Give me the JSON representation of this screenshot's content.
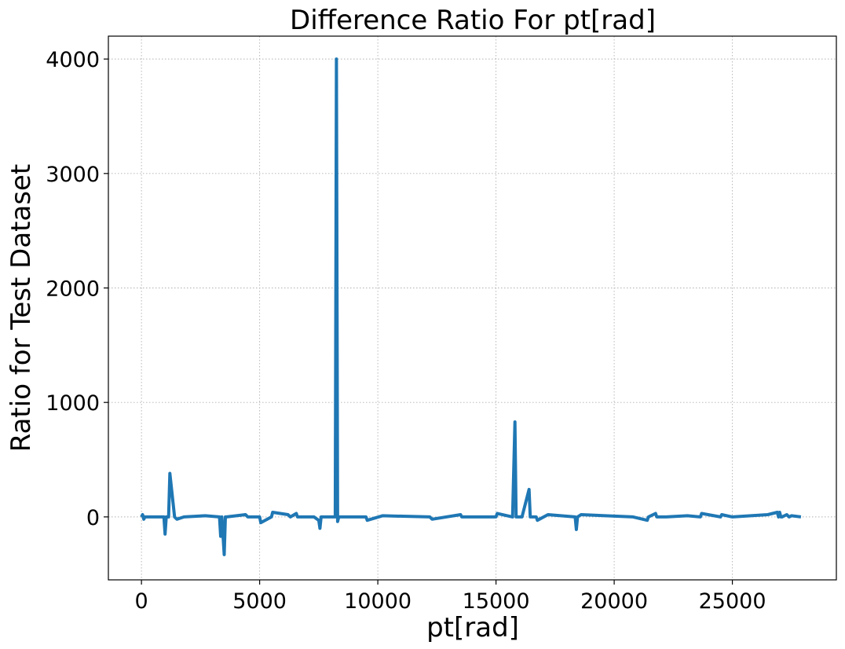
{
  "chart_data": {
    "type": "line",
    "title": "Difference Ratio For pt[rad]",
    "xlabel": "pt[rad]",
    "ylabel": "Ratio for Test Dataset",
    "xlim": [
      -1400,
      29400
    ],
    "ylim": [
      -550,
      4200
    ],
    "xticks": [
      0,
      5000,
      10000,
      15000,
      20000,
      25000
    ],
    "yticks": [
      0,
      1000,
      2000,
      3000,
      4000
    ],
    "grid": true,
    "grid_style": "dotted",
    "line_color": "#1f77b4",
    "series": [
      {
        "x": [
          0,
          50,
          100,
          150,
          950,
          1000,
          1050,
          1150,
          1200,
          1400,
          1500,
          1800,
          2700,
          3300,
          3350,
          3400,
          3500,
          3550,
          3600,
          4400,
          4500,
          5000,
          5050,
          5500,
          5550,
          6200,
          6300,
          6550,
          6600,
          7300,
          7500,
          7550,
          7600,
          7700,
          8200,
          8250,
          8300,
          8350,
          9500,
          9550,
          10200,
          12200,
          12300,
          13500,
          13550,
          15000,
          15050,
          15700,
          15800,
          15850,
          15900,
          16100,
          16150,
          16400,
          16450,
          16550,
          16700,
          16750,
          17200,
          18350,
          18400,
          18450,
          18600,
          20800,
          21400,
          21450,
          21750,
          21800,
          22200,
          23100,
          23650,
          23700,
          24500,
          24550,
          25000,
          26500,
          26900,
          26950,
          27000,
          27050,
          27100,
          27300,
          27400,
          27500,
          27900
        ],
        "y": [
          0,
          20,
          -20,
          0,
          0,
          -150,
          0,
          0,
          380,
          0,
          -20,
          0,
          10,
          0,
          -170,
          0,
          -330,
          0,
          0,
          20,
          0,
          0,
          -50,
          0,
          40,
          20,
          0,
          30,
          0,
          0,
          -30,
          -100,
          0,
          0,
          0,
          4000,
          -40,
          0,
          0,
          -30,
          10,
          0,
          -20,
          20,
          0,
          0,
          30,
          0,
          830,
          0,
          0,
          0,
          40,
          240,
          0,
          0,
          0,
          -30,
          20,
          0,
          -110,
          0,
          20,
          0,
          -30,
          0,
          30,
          0,
          0,
          10,
          0,
          30,
          0,
          20,
          0,
          20,
          40,
          0,
          40,
          0,
          0,
          20,
          0,
          10,
          0
        ]
      }
    ]
  }
}
